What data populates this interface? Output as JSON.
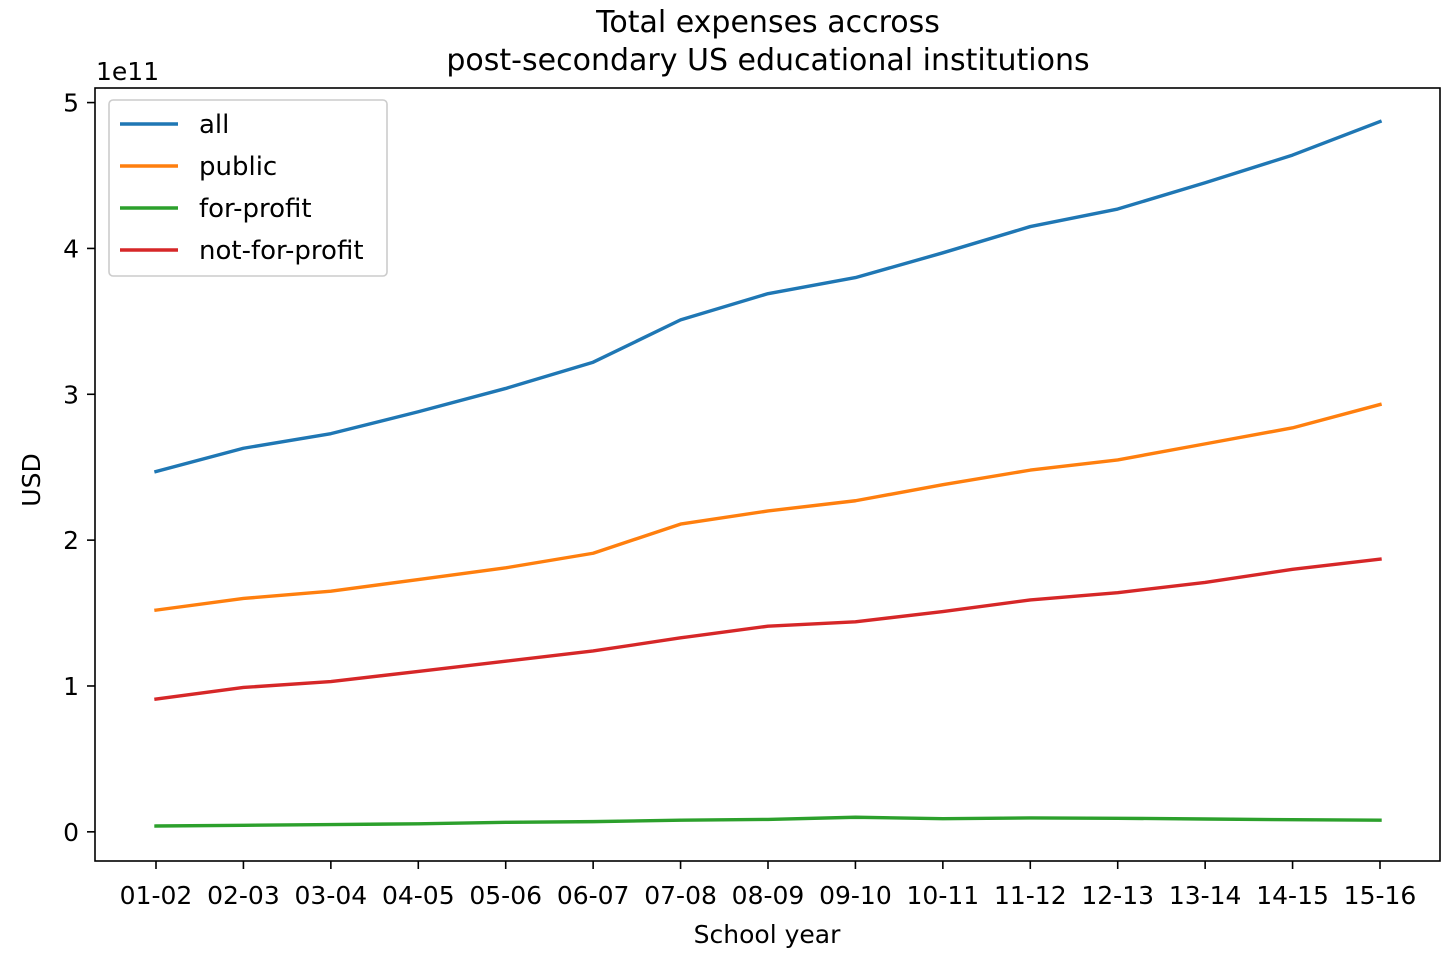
{
  "chart_data": {
    "type": "line",
    "title_lines": [
      "Total expenses accross",
      "post-secondary US educational institutions"
    ],
    "xlabel": "School year",
    "ylabel": "USD",
    "y_offset_label": "1e11",
    "categories": [
      "01-02",
      "02-03",
      "03-04",
      "04-05",
      "05-06",
      "06-07",
      "07-08",
      "08-09",
      "09-10",
      "10-11",
      "11-12",
      "12-13",
      "13-14",
      "14-15",
      "15-16"
    ],
    "y_ticks": [
      0,
      1,
      2,
      3,
      4,
      5
    ],
    "y_tick_labels": [
      "0",
      "1",
      "2",
      "3",
      "4",
      "5"
    ],
    "ylim": [
      -0.2,
      5.1
    ],
    "y_unit_scale": 100000000000.0,
    "legend_position": "upper-left",
    "grid": false,
    "series": [
      {
        "name": "all",
        "color": "#1f77b4",
        "values": [
          2.47,
          2.63,
          2.73,
          2.88,
          3.04,
          3.22,
          3.51,
          3.69,
          3.8,
          3.97,
          4.15,
          4.27,
          4.45,
          4.64,
          4.87
        ]
      },
      {
        "name": "public",
        "color": "#ff7f0e",
        "values": [
          1.52,
          1.6,
          1.65,
          1.73,
          1.81,
          1.91,
          2.11,
          2.2,
          2.27,
          2.38,
          2.48,
          2.55,
          2.66,
          2.77,
          2.93
        ]
      },
      {
        "name": "for-profit",
        "color": "#2ca02c",
        "values": [
          0.04,
          0.045,
          0.05,
          0.055,
          0.065,
          0.07,
          0.08,
          0.085,
          0.1,
          0.09,
          0.095,
          0.093,
          0.088,
          0.083,
          0.08
        ]
      },
      {
        "name": "not-for-profit",
        "color": "#d62728",
        "values": [
          0.91,
          0.99,
          1.03,
          1.1,
          1.17,
          1.24,
          1.33,
          1.41,
          1.44,
          1.51,
          1.59,
          1.64,
          1.71,
          1.8,
          1.87
        ]
      }
    ]
  }
}
